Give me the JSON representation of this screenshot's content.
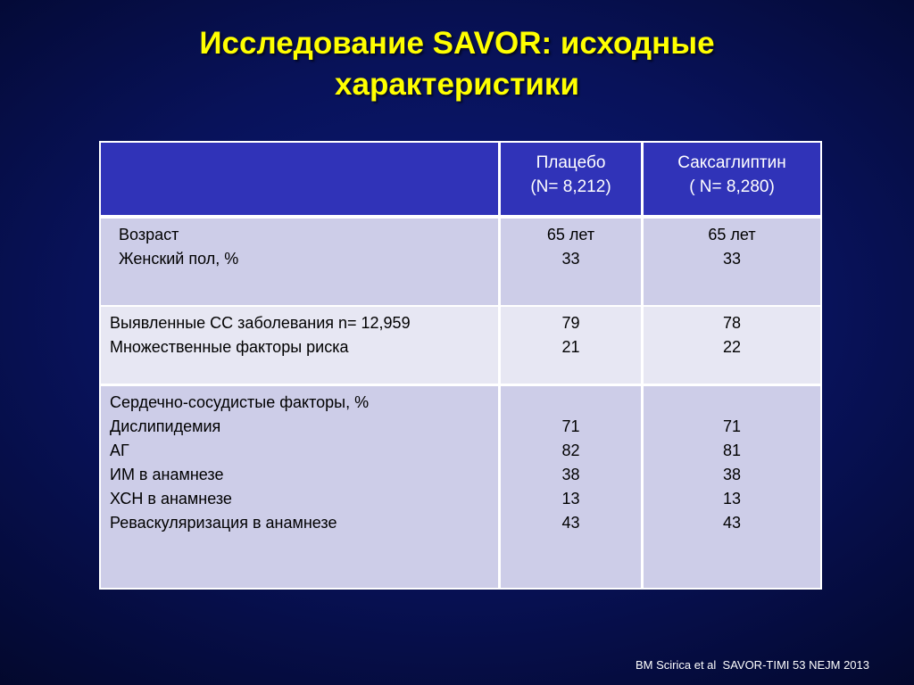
{
  "title": {
    "line1": "Исследование SAVOR: исходные",
    "line2": "характеристики"
  },
  "table": {
    "header": {
      "col0": "",
      "placebo": [
        "Плацебо",
        "(N= 8,212)"
      ],
      "saxa": [
        "Саксаглиптин",
        "( N= 8,280)"
      ]
    },
    "rows": [
      {
        "labels": [
          "Возраст",
          "Женский пол, %"
        ],
        "placebo": [
          "65 лет",
          "33"
        ],
        "saxa": [
          "65 лет",
          "33"
        ]
      },
      {
        "labels": [
          "Выявленные СС заболевания n= 12,959",
          "Множественные факторы риска"
        ],
        "placebo": [
          "79",
          "21"
        ],
        "saxa": [
          "78",
          "22"
        ]
      },
      {
        "labels": [
          "Сердечно-сосудистые факторы, %",
          "Дислипидемия",
          "АГ",
          "ИМ в анамнезе",
          "ХСН в анамнезе",
          "Реваскуляризация в анамнезе"
        ],
        "placebo": [
          "",
          "71",
          "82",
          "38",
          "13",
          "43"
        ],
        "saxa": [
          "",
          "71",
          "81",
          "38",
          "13",
          "43"
        ]
      }
    ]
  },
  "citation": "BM Scirica et al  SAVOR-TIMI 53 NEJM 2013",
  "colors": {
    "title": "#ffff00",
    "header_bg": "#3033b8",
    "row_light": "#e7e7f3",
    "row_medium": "#cdcde8",
    "background": "#08125a"
  }
}
